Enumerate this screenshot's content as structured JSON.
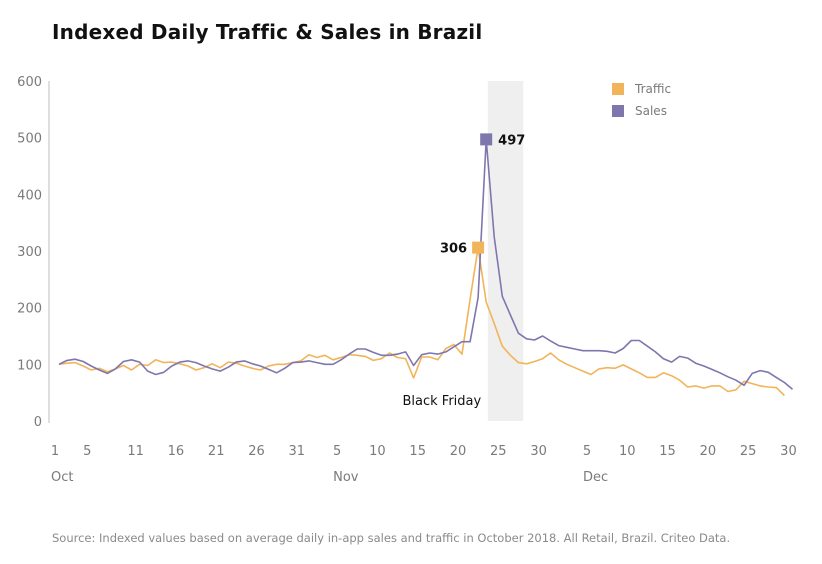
{
  "chart_data": {
    "type": "line",
    "title": "Indexed Daily Traffic & Sales in Brazil",
    "source": "Source: Indexed values based on average daily in-app sales and traffic in October 2018. All Retail, Brazil. Criteo Data.",
    "ylim": [
      0,
      600
    ],
    "yticks": [
      "0",
      "100",
      "200",
      "300",
      "400",
      "500",
      "600"
    ],
    "x_tick_labels": [
      "1",
      "5",
      "11",
      "16",
      "21",
      "26",
      "31",
      "5",
      "10",
      "15",
      "20",
      "25",
      "30",
      "5",
      "10",
      "15",
      "20",
      "25",
      "30"
    ],
    "month_labels": [
      "Oct",
      "Nov",
      "Dec"
    ],
    "grid": false,
    "legend_position": "top-right",
    "shaded_band_label": "Black Friday",
    "series": [
      {
        "name": "Traffic",
        "color": "#F2B45A",
        "values": [
          100,
          102,
          103,
          97,
          90,
          93,
          87,
          92,
          98,
          90,
          100,
          98,
          108,
          103,
          104,
          101,
          97,
          90,
          94,
          101,
          94,
          104,
          102,
          97,
          93,
          90,
          97,
          100,
          100,
          103,
          106,
          117,
          112,
          116,
          108,
          112,
          117,
          116,
          114,
          107,
          110,
          120,
          112,
          110,
          76,
          113,
          113,
          108,
          128,
          135,
          118,
          215,
          306,
          210,
          172,
          132,
          116,
          103,
          101,
          105,
          110,
          120,
          108,
          100,
          94,
          88,
          82,
          92,
          94,
          93,
          99,
          92,
          85,
          77,
          77,
          85,
          80,
          72,
          60,
          62,
          58,
          62,
          62,
          52,
          55,
          70,
          66,
          62,
          60,
          59,
          45
        ]
      },
      {
        "name": "Sales",
        "color": "#7E77AD",
        "values": [
          100,
          107,
          109,
          105,
          97,
          90,
          84,
          92,
          105,
          108,
          104,
          88,
          82,
          86,
          97,
          104,
          106,
          103,
          97,
          92,
          88,
          95,
          104,
          106,
          101,
          97,
          91,
          85,
          93,
          103,
          104,
          106,
          103,
          100,
          100,
          108,
          118,
          127,
          127,
          121,
          116,
          116,
          118,
          122,
          98,
          117,
          120,
          118,
          122,
          131,
          140,
          140,
          218,
          497,
          325,
          220,
          187,
          155,
          145,
          143,
          150,
          141,
          133,
          130,
          127,
          124,
          124,
          124,
          123,
          120,
          128,
          142,
          142,
          132,
          122,
          110,
          104,
          114,
          111,
          102,
          97,
          91,
          85,
          78,
          72,
          63,
          84,
          89,
          86,
          77,
          68,
          56
        ]
      }
    ],
    "callouts": [
      {
        "series": "Traffic",
        "value": 306,
        "label": "306"
      },
      {
        "series": "Sales",
        "value": 497,
        "label": "497"
      }
    ]
  }
}
